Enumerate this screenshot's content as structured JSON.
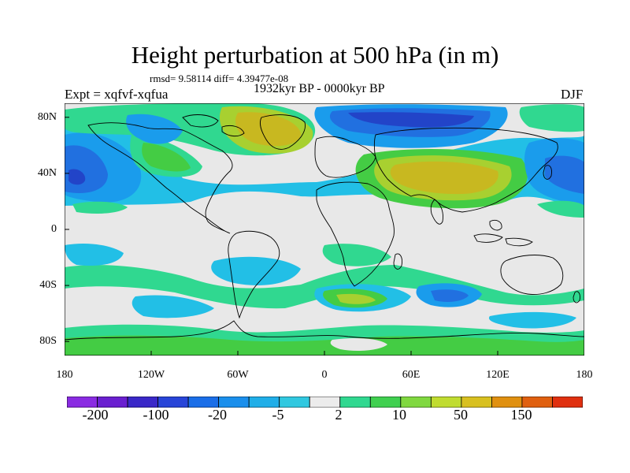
{
  "title": "Height perturbation at 500 hPa (in m)",
  "stats": "rmsd= 9.58114 diff= 4.39477e-08",
  "expt": "Expt = xqfvf-xqfua",
  "period": "1932kyr BP - 0000kyr BP",
  "season": "DJF",
  "lat_labels": [
    "80N",
    "40N",
    "0",
    "40S",
    "80S"
  ],
  "lon_labels": [
    "180",
    "120W",
    "60W",
    "0",
    "60E",
    "120E",
    "180"
  ],
  "colorbar": {
    "levels_shown": [
      "-200",
      "-100",
      "-20",
      "-5",
      "2",
      "10",
      "50",
      "150"
    ],
    "colors": [
      "#8a2be2",
      "#6a1fd0",
      "#3a28c8",
      "#2845d8",
      "#1a6ee8",
      "#1a8fec",
      "#20aee8",
      "#30c8e0",
      "#ececec",
      "#30d890",
      "#40d050",
      "#80d840",
      "#c0dc30",
      "#d8c020",
      "#e09010",
      "#e06010",
      "#e03010"
    ]
  },
  "colors": {
    "gray": "#e8e8e8",
    "cyan": "#22bfe6",
    "blue_med": "#1a9cec",
    "blue": "#2170e0",
    "blue_dark": "#2244c8",
    "indigo": "#3030c0",
    "green_teal": "#30d890",
    "green": "#44cc44",
    "yellowgreen": "#a8d030",
    "yellow": "#c8b820"
  }
}
